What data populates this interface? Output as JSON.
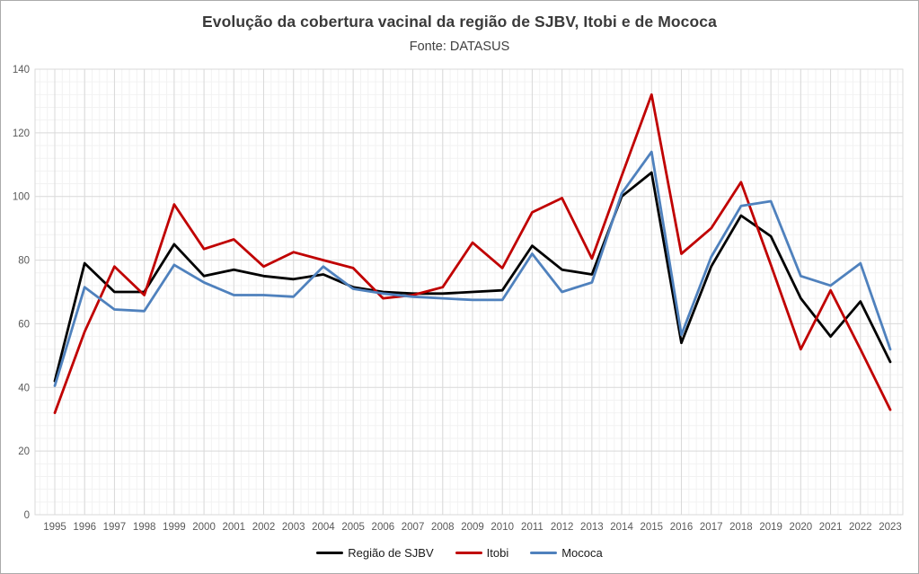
{
  "chart_data": {
    "type": "line",
    "title": "Evolução da cobertura vacinal da região de SJBV, Itobi e de Mococa",
    "subtitle": "Fonte: DATASUS",
    "categories": [
      1995,
      1996,
      1997,
      1998,
      1999,
      2000,
      2001,
      2002,
      2003,
      2004,
      2005,
      2006,
      2007,
      2008,
      2009,
      2010,
      2011,
      2012,
      2013,
      2014,
      2015,
      2016,
      2017,
      2018,
      2019,
      2020,
      2021,
      2022,
      2023
    ],
    "series": [
      {
        "name": "Região de SJBV",
        "color": "#000000",
        "values": [
          42,
          79,
          70,
          70,
          85,
          75,
          77,
          75,
          74,
          75.5,
          71.5,
          70,
          69.5,
          69.5,
          70,
          70.5,
          84.5,
          77,
          75.5,
          100,
          107.5,
          54,
          78,
          94,
          87.5,
          68,
          56,
          67,
          48
        ]
      },
      {
        "name": "Itobi",
        "color": "#C00000",
        "values": [
          32,
          57.5,
          78,
          69,
          97.5,
          83.5,
          86.5,
          78,
          82.5,
          80,
          77.5,
          68,
          69,
          71.5,
          85.5,
          77.5,
          95,
          99.5,
          80.5,
          106.5,
          132,
          82,
          90,
          104.5,
          78.5,
          52,
          70.5,
          52,
          33
        ]
      },
      {
        "name": "Mococa",
        "color": "#4F81BD",
        "values": [
          40.5,
          71.5,
          64.5,
          64,
          78.5,
          73,
          69,
          69,
          68.5,
          78,
          71,
          69.5,
          68.5,
          68,
          67.5,
          67.5,
          82,
          70,
          73,
          101,
          114,
          56.5,
          81,
          97,
          98.5,
          75,
          72,
          79,
          52
        ]
      }
    ],
    "y_axis": {
      "min": 0,
      "max": 140,
      "step": 20,
      "minor_step": 4,
      "ticks": [
        0,
        20,
        40,
        60,
        80,
        100,
        120,
        140
      ]
    },
    "x_axis": {
      "minor_divisions_per_year": 4
    },
    "grid": "major-and-minor",
    "legend_position": "bottom"
  },
  "legend": {
    "items": [
      {
        "label": "Região de SJBV"
      },
      {
        "label": "Itobi"
      },
      {
        "label": "Mococa"
      }
    ]
  }
}
